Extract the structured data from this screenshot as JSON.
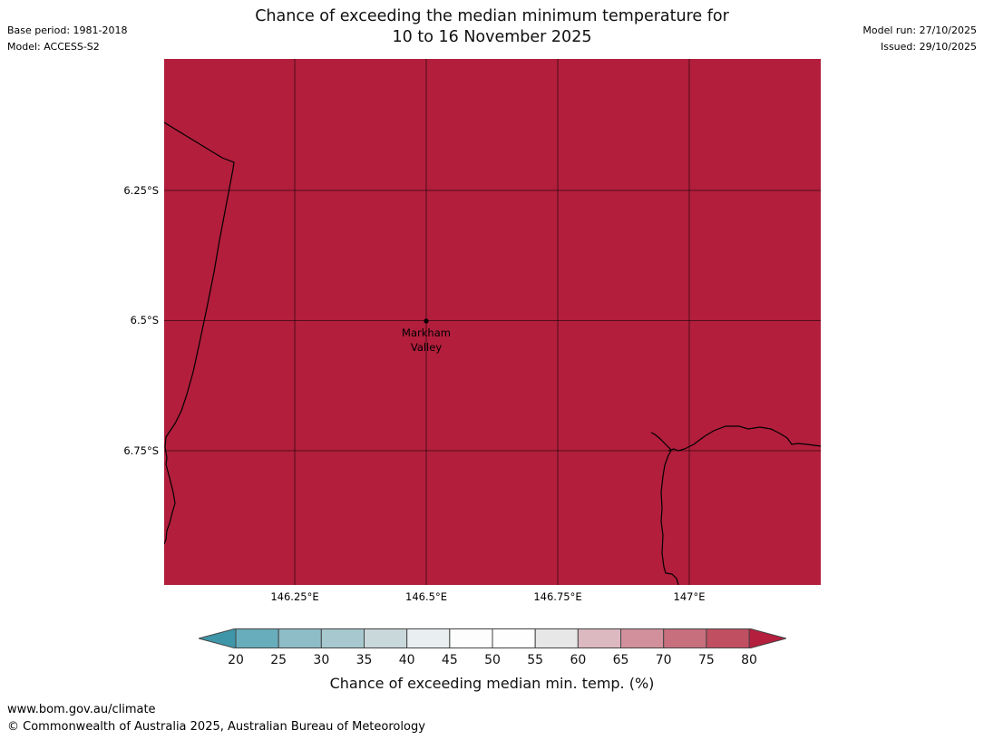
{
  "header": {
    "title_line1": "Chance of exceeding the median minimum temperature for",
    "title_line2": "10 to 16 November 2025",
    "base_period": "Base period: 1981-2018",
    "model": "Model: ACCESS-S2",
    "model_run": "Model run: 27/10/2025",
    "issued": "Issued: 29/10/2025"
  },
  "map": {
    "fill_color": "#b21e3c",
    "coastline_color": "#000000",
    "marker": {
      "label_line1": "Markham",
      "label_line2": "Valley"
    },
    "lat_ticks": [
      {
        "label": "6.25°S"
      },
      {
        "label": "6.5°S"
      },
      {
        "label": "6.75°S"
      }
    ],
    "lon_ticks": [
      {
        "label": "146.25°E"
      },
      {
        "label": "146.5°E"
      },
      {
        "label": "146.75°E"
      },
      {
        "label": "147°E"
      }
    ]
  },
  "colorbar": {
    "caption": "Chance of exceeding median min. temp. (%)",
    "ticks": [
      "20",
      "25",
      "30",
      "35",
      "40",
      "45",
      "50",
      "55",
      "60",
      "65",
      "70",
      "75",
      "80"
    ],
    "segment_colors": [
      "#68adbb",
      "#8ebdc7",
      "#a6c8ce",
      "#c9d8da",
      "#e9eff1",
      "#fdfdfe",
      "#fefefe",
      "#e7e7e7",
      "#dcb8c0",
      "#d1909b",
      "#c86f7d",
      "#c04f61"
    ],
    "left_arrow_color": "#3e96a8",
    "right_arrow_color": "#b41f3e"
  },
  "footer": {
    "url": "www.bom.gov.au/climate",
    "copyright": "© Commonwealth of Australia 2025, Australian Bureau of Meteorology"
  },
  "chart_data": {
    "type": "heatmap",
    "title": "Chance of exceeding the median minimum temperature for 10 to 16 November 2025",
    "x_tick_labels": [
      "146.25°E",
      "146.5°E",
      "146.75°E",
      "147°E"
    ],
    "y_tick_labels": [
      "6.25°S",
      "6.5°S",
      "6.75°S"
    ],
    "lon_range": [
      146.0,
      147.25
    ],
    "lat_range": [
      -7.0,
      -6.0
    ],
    "colorbar_label": "Chance of exceeding median min. temp. (%)",
    "colorbar_ticks": [
      20,
      25,
      30,
      35,
      40,
      45,
      50,
      55,
      60,
      65,
      70,
      75,
      80
    ],
    "values_summary": "Entire mapped region shaded in the darkest class (>80% chance)",
    "marker": {
      "name": "Markham Valley",
      "lon": 146.5,
      "lat": -6.5
    },
    "grid": true,
    "legend_position": "bottom"
  }
}
